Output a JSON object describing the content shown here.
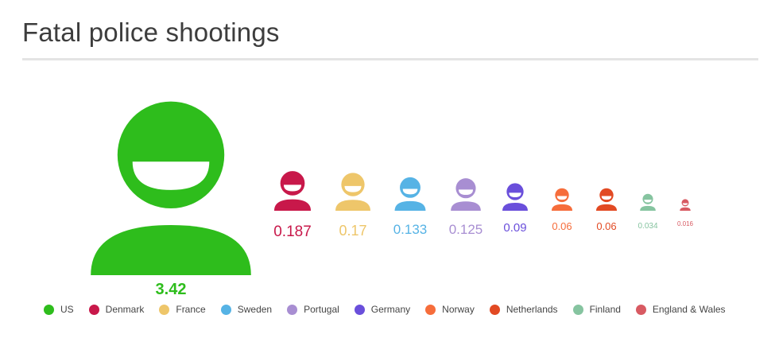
{
  "title": "Fatal police shootings",
  "chart_data": {
    "type": "pictograph",
    "title": "Fatal police shootings",
    "categories": [
      "US",
      "Denmark",
      "France",
      "Sweden",
      "Portugal",
      "Germany",
      "Norway",
      "Netherlands",
      "Finland",
      "England & Wales"
    ],
    "values": [
      3.42,
      0.187,
      0.17,
      0.133,
      0.125,
      0.09,
      0.06,
      0.06,
      0.034,
      0.016
    ],
    "value_labels": [
      "3.42",
      "0.187",
      "0.17",
      "0.133",
      "0.125",
      "0.09",
      "0.06",
      "0.06",
      "0.034",
      "0.016"
    ],
    "colors": [
      "#2ebd1c",
      "#c8184a",
      "#eec66a",
      "#56b3e5",
      "#a88ed2",
      "#6a4fdb",
      "#f66d3b",
      "#e24a23",
      "#86c4a0",
      "#d85a62"
    ],
    "legend_position": "bottom",
    "grid": false
  }
}
